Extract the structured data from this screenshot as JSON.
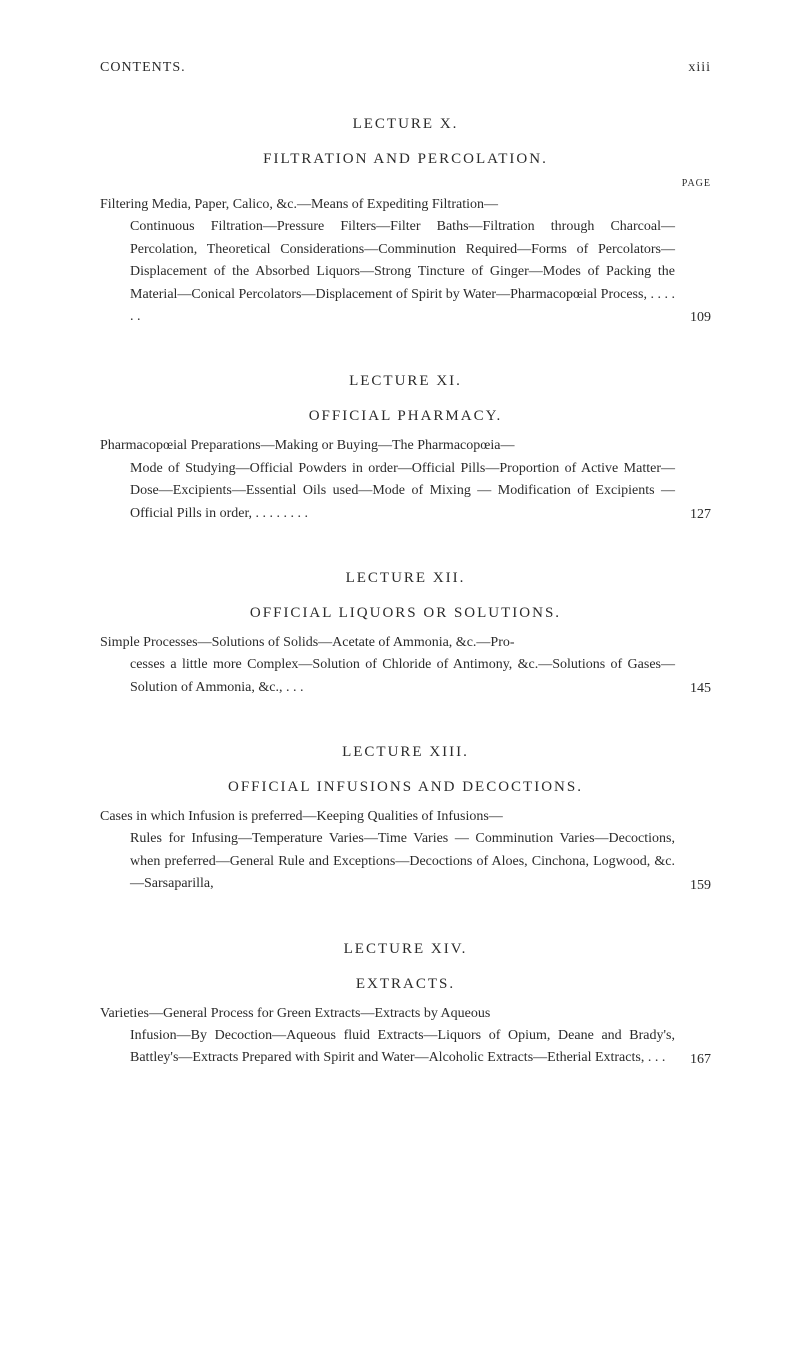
{
  "header": {
    "title": "CONTENTS.",
    "page_number": "xiii"
  },
  "page_label": "PAGE",
  "lectures": [
    {
      "lecture_title": "LECTURE X.",
      "section_title": "FILTRATION AND PERCOLATION.",
      "show_page_label": true,
      "entry_first": "Filtering Media, Paper, Calico, &c.—Means of Expediting Filtration—",
      "entry_rest": "Continuous Filtration—Pressure Filters—Filter Baths—Filtration through Charcoal—Percolation, Theoretical Considerations—Comminution Required—Forms of Percolators—Displacement of the Absorbed Liquors—Strong Tincture of Ginger—Modes of Packing the Material—Conical Percolators—Displacement of Spirit by Water—Pharmacopœial Process,     .     .     .     .     .     .",
      "page": "109"
    },
    {
      "lecture_title": "LECTURE XI.",
      "section_title": "OFFICIAL PHARMACY.",
      "show_page_label": false,
      "entry_first": "Pharmacopœial Preparations—Making or Buying—The Pharmacopœia—",
      "entry_rest": "Mode of Studying—Official Powders in order—Official Pills—Proportion of Active Matter—Dose—Excipients—Essential Oils used—Mode of Mixing — Modification of Excipients — Official Pills in order,     .     .     .     .     .     .     .     .",
      "page": "127"
    },
    {
      "lecture_title": "LECTURE XII.",
      "section_title": "OFFICIAL LIQUORS OR SOLUTIONS.",
      "show_page_label": false,
      "entry_first": "Simple Processes—Solutions of Solids—Acetate of Ammonia, &c.—Pro-",
      "entry_rest": "cesses a little more Complex—Solution of Chloride of Antimony, &c.—Solutions of Gases—Solution of Ammonia, &c.,     .     .     .",
      "page": "145"
    },
    {
      "lecture_title": "LECTURE XIII.",
      "section_title": "OFFICIAL INFUSIONS AND DECOCTIONS.",
      "show_page_label": false,
      "entry_first": "Cases in which Infusion is preferred—Keeping Qualities of Infusions—",
      "entry_rest": "Rules for Infusing—Temperature Varies—Time Varies — Comminution Varies—Decoctions, when preferred—General Rule and Exceptions—Decoctions of Aloes, Cinchona, Logwood, &c.—Sarsaparilla,",
      "page": "159"
    },
    {
      "lecture_title": "LECTURE XIV.",
      "section_title": "EXTRACTS.",
      "show_page_label": false,
      "entry_first": "Varieties—General Process for Green Extracts—Extracts by Aqueous",
      "entry_rest": "Infusion—By Decoction—Aqueous fluid Extracts—Liquors of Opium, Deane and Brady's, Battley's—Extracts Prepared with Spirit and Water—Alcoholic Extracts—Etherial Extracts,     .     .     .",
      "page": "167"
    }
  ]
}
